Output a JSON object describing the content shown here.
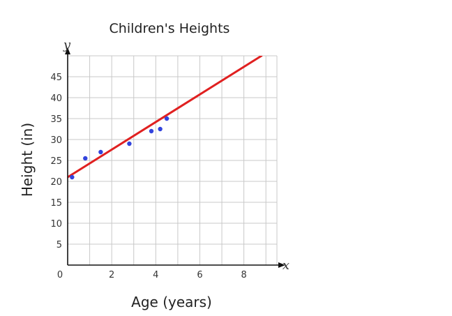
{
  "chart_data": {
    "type": "scatter",
    "title": "Children's Heights",
    "xlabel": "Age (years)",
    "ylabel": "Height (in)",
    "x_var": "x",
    "y_var": "y",
    "origin_label": "0",
    "xlim": [
      0,
      9.5
    ],
    "ylim": [
      0,
      50
    ],
    "x_ticks": [
      2,
      4,
      6,
      8
    ],
    "y_ticks": [
      5,
      10,
      15,
      20,
      25,
      30,
      35,
      40,
      45
    ],
    "grid": true,
    "points": [
      {
        "x": 0.2,
        "y": 21
      },
      {
        "x": 0.8,
        "y": 25.5
      },
      {
        "x": 1.5,
        "y": 27
      },
      {
        "x": 2.8,
        "y": 29
      },
      {
        "x": 3.8,
        "y": 32
      },
      {
        "x": 4.2,
        "y": 32.5
      },
      {
        "x": 4.5,
        "y": 35
      }
    ],
    "trend_line": {
      "x": [
        0,
        8.8
      ],
      "y": [
        21,
        50
      ]
    },
    "colors": {
      "points": "#3344dd",
      "trend_line": "#e02020",
      "grid": "#c8c8c8",
      "axis": "#111111"
    }
  }
}
